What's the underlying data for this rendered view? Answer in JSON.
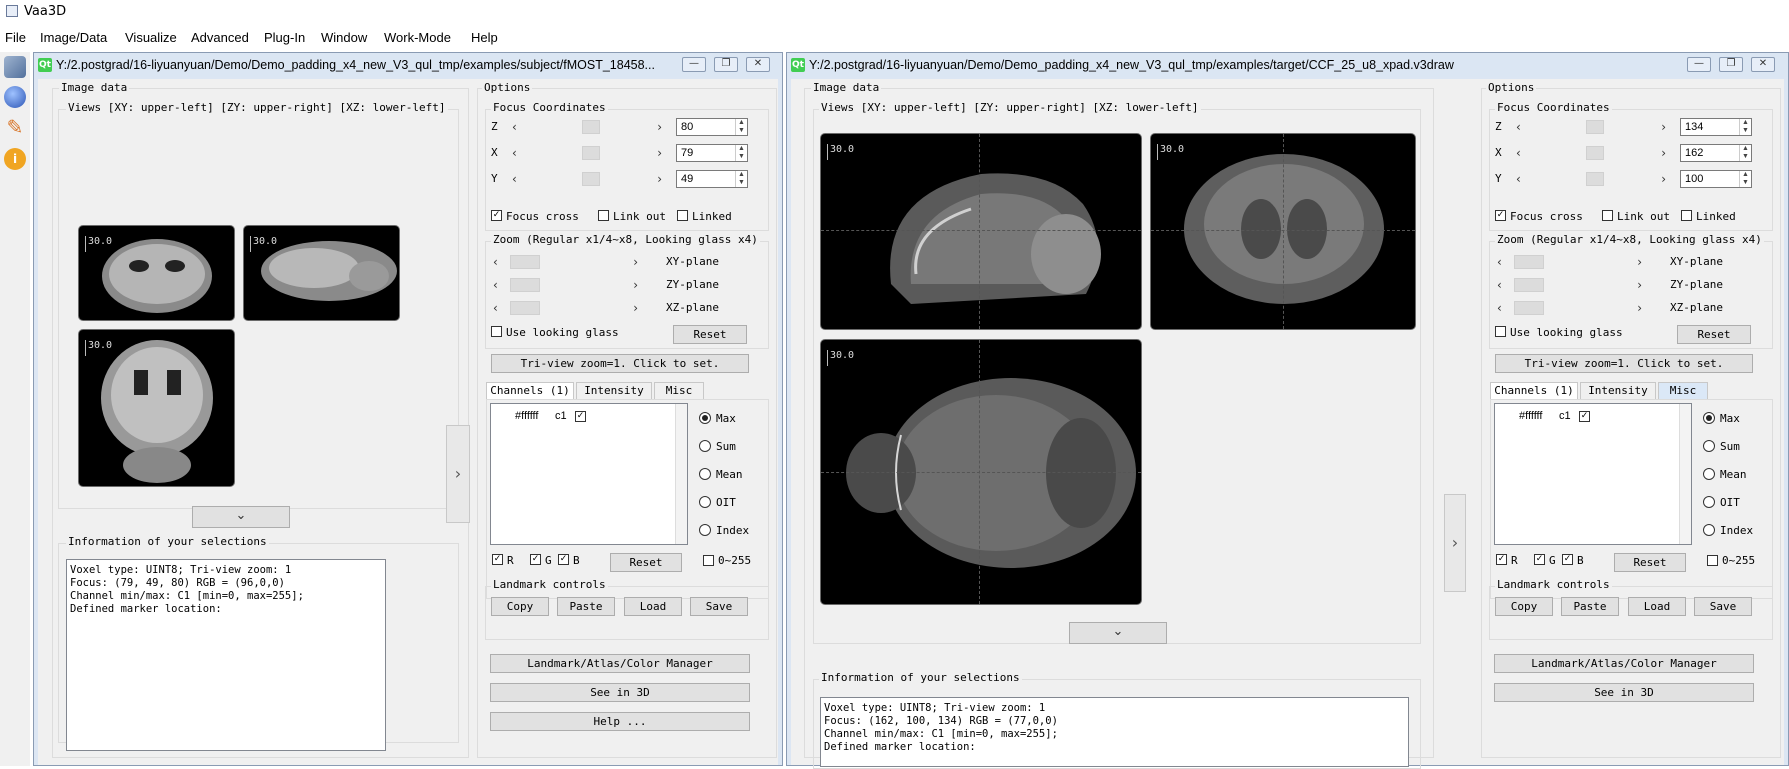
{
  "app": {
    "title": "Vaa3D"
  },
  "menu": [
    "File",
    "Image/Data",
    "Visualize",
    "Advanced",
    "Plug-In",
    "Window",
    "Work-Mode",
    "Help"
  ],
  "windows": [
    {
      "title": "Y:/2.postgrad/16-liyuanyuan/Demo/Demo_padding_x4_new_V3_qul_tmp/examples/subject/fMOST_18458...",
      "image_data_label": "Image data",
      "views_label": "Views [XY: upper-left] [ZY: upper-right] [XZ: lower-left]",
      "scale_label": "30.0",
      "info_label": "Information of your selections",
      "info_lines": [
        "Voxel type: UINT8; Tri-view zoom: 1",
        "Focus: (79, 49, 80) RGB = (96,0,0)",
        "Channel min/max: C1 [min=0, max=255];",
        "Defined marker location:"
      ],
      "options": {
        "label": "Options",
        "focus_label": "Focus Coordinates",
        "coords": [
          {
            "axis": "Z",
            "value": "80"
          },
          {
            "axis": "X",
            "value": "79"
          },
          {
            "axis": "Y",
            "value": "49"
          }
        ],
        "focus_cross": "Focus cross",
        "link_out": "Link out",
        "linked": "Linked",
        "zoom_label": "Zoom (Regular x1/4~x8, Looking glass x4)",
        "planes": [
          "XY-plane",
          "ZY-plane",
          "XZ-plane"
        ],
        "use_looking_glass": "Use looking glass",
        "reset": "Reset",
        "triview": "Tri-view zoom=1. Click to set.",
        "tabs": [
          "Channels (1)",
          "Intensity",
          "Misc"
        ],
        "channel": {
          "color": "#ffffff",
          "name": "c1"
        },
        "modes": [
          "Max",
          "Sum",
          "Mean",
          "OIT",
          "Index"
        ],
        "rgb": [
          "R",
          "G",
          "B"
        ],
        "range": "0~255",
        "landmark_label": "Landmark controls",
        "landmark_buttons": [
          "Copy",
          "Paste",
          "Load",
          "Save"
        ],
        "manager": "Landmark/Atlas/Color Manager",
        "see3d": "See in 3D",
        "help": "Help ..."
      }
    },
    {
      "title": "Y:/2.postgrad/16-liyuanyuan/Demo/Demo_padding_x4_new_V3_qul_tmp/examples/target/CCF_25_u8_xpad.v3draw",
      "image_data_label": "Image data",
      "views_label": "Views [XY: upper-left] [ZY: upper-right] [XZ: lower-left]",
      "scale_label": "30.0",
      "info_label": "Information of your selections",
      "info_lines": [
        "Voxel type: UINT8; Tri-view zoom: 1",
        "Focus: (162, 100, 134) RGB = (77,0,0)",
        "Channel min/max: C1 [min=0, max=255];",
        "Defined marker location:"
      ],
      "options": {
        "label": "Options",
        "focus_label": "Focus Coordinates",
        "coords": [
          {
            "axis": "Z",
            "value": "134"
          },
          {
            "axis": "X",
            "value": "162"
          },
          {
            "axis": "Y",
            "value": "100"
          }
        ],
        "focus_cross": "Focus cross",
        "link_out": "Link out",
        "linked": "Linked",
        "zoom_label": "Zoom (Regular x1/4~x8, Looking glass x4)",
        "planes": [
          "XY-plane",
          "ZY-plane",
          "XZ-plane"
        ],
        "use_looking_glass": "Use looking glass",
        "reset": "Reset",
        "triview": "Tri-view zoom=1. Click to set.",
        "tabs": [
          "Channels (1)",
          "Intensity",
          "Misc"
        ],
        "channel": {
          "color": "#ffffff",
          "name": "c1"
        },
        "modes": [
          "Max",
          "Sum",
          "Mean",
          "OIT",
          "Index"
        ],
        "rgb": [
          "R",
          "G",
          "B"
        ],
        "range": "0~255",
        "landmark_label": "Landmark controls",
        "landmark_buttons": [
          "Copy",
          "Paste",
          "Load",
          "Save"
        ],
        "manager": "Landmark/Atlas/Color Manager",
        "see3d": "See in 3D"
      }
    }
  ]
}
